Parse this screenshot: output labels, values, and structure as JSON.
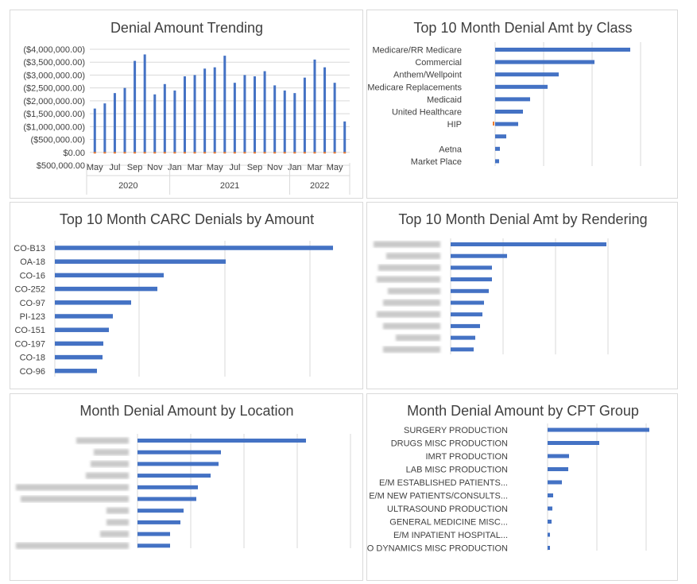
{
  "colors": {
    "bar": "#4472C4",
    "grid": "#d9d9d9",
    "accent": "#ED7D31"
  },
  "charts": {
    "trending": {
      "title": "Denial Amount Trending",
      "y_ticks": [
        "($4,000,000.00)",
        "($3,500,000.00)",
        "($3,000,000.00)",
        "($2,500,000.00)",
        "($2,000,000.00)",
        "($1,500,000.00)",
        "($1,000,000.00)",
        "($500,000.00)",
        "$0.00",
        "$500,000.00"
      ],
      "x_month_labels": [
        "May",
        "Jul",
        "Sep",
        "Nov",
        "Jan",
        "Mar",
        "May",
        "Jul",
        "Sep",
        "Nov",
        "Jan",
        "Mar",
        "May"
      ],
      "years": [
        "2020",
        "2021",
        "2022"
      ]
    },
    "by_class": {
      "title": "Top 10 Month Denial Amt by Class",
      "labels": [
        "Medicare/RR Medicare",
        "Commercial",
        "Anthem/Wellpoint",
        "Medicare Replacements",
        "Medicaid",
        "United Healthcare",
        "HIP",
        "",
        "Aetna",
        "Market Place"
      ]
    },
    "carc": {
      "title": "Top 10 Month CARC Denials by Amount",
      "labels": [
        "CO-B13",
        "OA-18",
        "CO-16",
        "CO-252",
        "CO-97",
        "PI-123",
        "CO-151",
        "CO-197",
        "CO-18",
        "CO-96"
      ]
    },
    "rendering": {
      "title": "Top 10 Month Denial Amt by Rendering"
    },
    "location": {
      "title": "Month Denial Amount by Location"
    },
    "cpt": {
      "title": "Month Denial Amount by CPT Group",
      "labels": [
        "SURGERY PRODUCTION",
        "DRUGS MISC PRODUCTION",
        "IMRT  PRODUCTION",
        "LAB  MISC PRODUCTION",
        "E/M ESTABLISHED PATIENTS...",
        "E/M NEW PATIENTS/CONSULTS...",
        "ULTRASOUND PRODUCTION",
        "GENERAL MEDICINE MISC...",
        "E/M INPATIENT HOSPITAL...",
        "URO DYNAMICS MISC PRODUCTION"
      ]
    }
  },
  "chart_data": [
    {
      "type": "bar",
      "title": "Denial Amount Trending",
      "categories": [
        "2020-05",
        "2020-06",
        "2020-07",
        "2020-08",
        "2020-09",
        "2020-10",
        "2020-11",
        "2020-12",
        "2021-01",
        "2021-02",
        "2021-03",
        "2021-04",
        "2021-05",
        "2021-06",
        "2021-07",
        "2021-08",
        "2021-09",
        "2021-10",
        "2021-11",
        "2021-12",
        "2022-01",
        "2022-02",
        "2022-03",
        "2022-04",
        "2022-05",
        "2022-06"
      ],
      "values": [
        -1700000,
        -1900000,
        -2300000,
        -2500000,
        -3550000,
        -3800000,
        -2250000,
        -2650000,
        -2400000,
        -2950000,
        -3000000,
        -3250000,
        -3300000,
        -3750000,
        -2700000,
        -3000000,
        -2950000,
        -3150000,
        -2600000,
        -2400000,
        -2300000,
        -2900000,
        -3600000,
        -3300000,
        -2700000,
        -1200000
      ],
      "ylim": [
        -4000000,
        500000
      ],
      "grid": true
    },
    {
      "type": "bar",
      "title": "Top 10 Month Denial Amt by Class",
      "categories": [
        "Medicare/RR Medicare",
        "Commercial",
        "Anthem/Wellpoint",
        "Medicare Replacements",
        "Medicaid",
        "United Healthcare",
        "HIP",
        "",
        "Aetna",
        "Market Place"
      ],
      "values": [
        170,
        125,
        80,
        66,
        44,
        35,
        29,
        14,
        6,
        5
      ]
    },
    {
      "type": "bar",
      "title": "Top 10 Month CARC Denials by Amount",
      "categories": [
        "CO-B13",
        "OA-18",
        "CO-16",
        "CO-252",
        "CO-97",
        "PI-123",
        "CO-151",
        "CO-197",
        "CO-18",
        "CO-96"
      ],
      "values": [
        350,
        215,
        137,
        129,
        96,
        73,
        68,
        61,
        60,
        53
      ]
    },
    {
      "type": "bar",
      "title": "Top 10 Month Denial Amt by Rendering",
      "values": [
        196,
        71,
        52,
        52,
        48,
        42,
        40,
        37,
        31,
        29
      ]
    },
    {
      "type": "bar",
      "title": "Month Denial Amount by Location",
      "values": [
        212,
        105,
        102,
        92,
        76,
        74,
        58,
        54,
        41,
        41
      ]
    },
    {
      "type": "bar",
      "title": "Month Denial Amount by CPT Group",
      "categories": [
        "SURGERY PRODUCTION",
        "DRUGS MISC PRODUCTION",
        "IMRT  PRODUCTION",
        "LAB  MISC PRODUCTION",
        "E/M ESTABLISHED PATIENTS...",
        "E/M NEW PATIENTS/CONSULTS...",
        "ULTRASOUND PRODUCTION",
        "GENERAL MEDICINE MISC...",
        "E/M INPATIENT HOSPITAL...",
        "URO DYNAMICS MISC PRODUCTION"
      ],
      "values": [
        128,
        65,
        27,
        26,
        18,
        7,
        6,
        5,
        3,
        3
      ]
    }
  ]
}
